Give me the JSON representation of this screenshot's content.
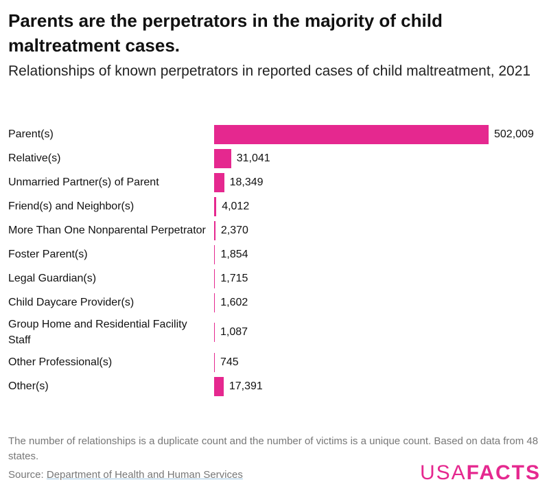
{
  "chart_data": {
    "type": "bar",
    "orientation": "horizontal",
    "title": "Parents are the perpetrators in the majority of child maltreatment cases.",
    "subtitle": "Relationships of known perpetrators in reported cases of child maltreatment, 2021",
    "categories": [
      "Parent(s)",
      "Relative(s)",
      "Unmarried Partner(s) of Parent",
      "Friend(s) and Neighbor(s)",
      "More Than One Nonparental Perpetrator",
      "Foster Parent(s)",
      "Legal Guardian(s)",
      "Child Daycare Provider(s)",
      "Group Home and Residential Facility Staff",
      "Other Professional(s)",
      "Other(s)"
    ],
    "values": [
      502009,
      31041,
      18349,
      4012,
      2370,
      1854,
      1715,
      1602,
      1087,
      745,
      17391
    ],
    "value_labels": [
      "502,009",
      "31,041",
      "18,349",
      "4,012",
      "2,370",
      "1,854",
      "1,715",
      "1,602",
      "1,087",
      "745",
      "17,391"
    ],
    "color": "#e5288f",
    "note": "The number of relationships is a duplicate count and the number of victims is a unique count. Based on data from 48 states.",
    "source_prefix": "Source:",
    "source": "Department of Health and Human Services",
    "logo": [
      "USA",
      "FACTS"
    ]
  }
}
